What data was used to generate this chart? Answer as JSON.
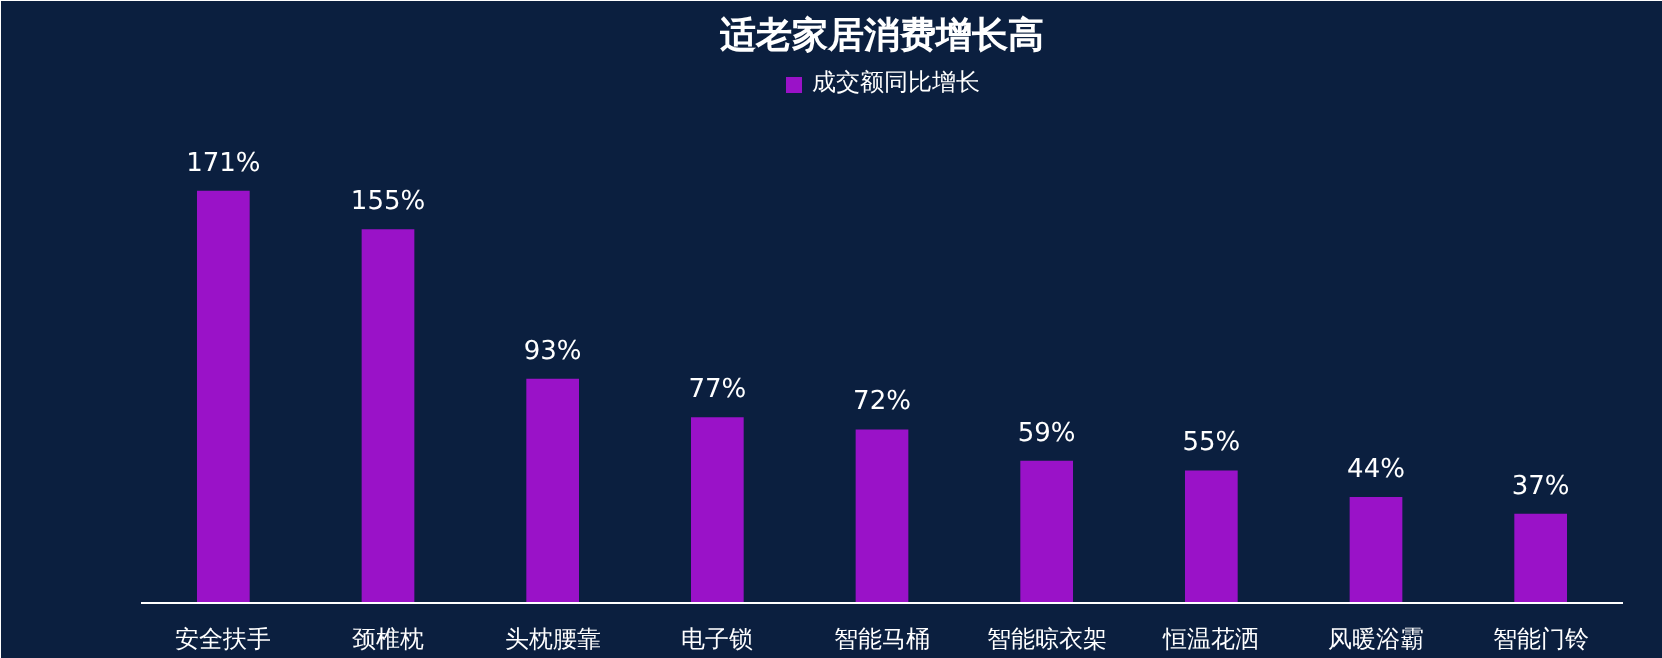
{
  "chart_data": {
    "type": "bar",
    "title": "适老家居消费增长高",
    "categories": [
      "安全扶手",
      "颈椎枕",
      "头枕腰靠",
      "电子锁",
      "智能马桶",
      "智能晾衣架",
      "恒温花洒",
      "风暖浴霸",
      "智能门铃"
    ],
    "series": [
      {
        "name": "成交额同比增长",
        "color": "#9a12c8",
        "values": [
          171,
          155,
          93,
          77,
          72,
          59,
          55,
          44,
          37
        ],
        "value_labels": [
          "171%",
          "155%",
          "93%",
          "77%",
          "72%",
          "59%",
          "55%",
          "44%",
          "37%"
        ]
      }
    ],
    "legend": "top"
  }
}
